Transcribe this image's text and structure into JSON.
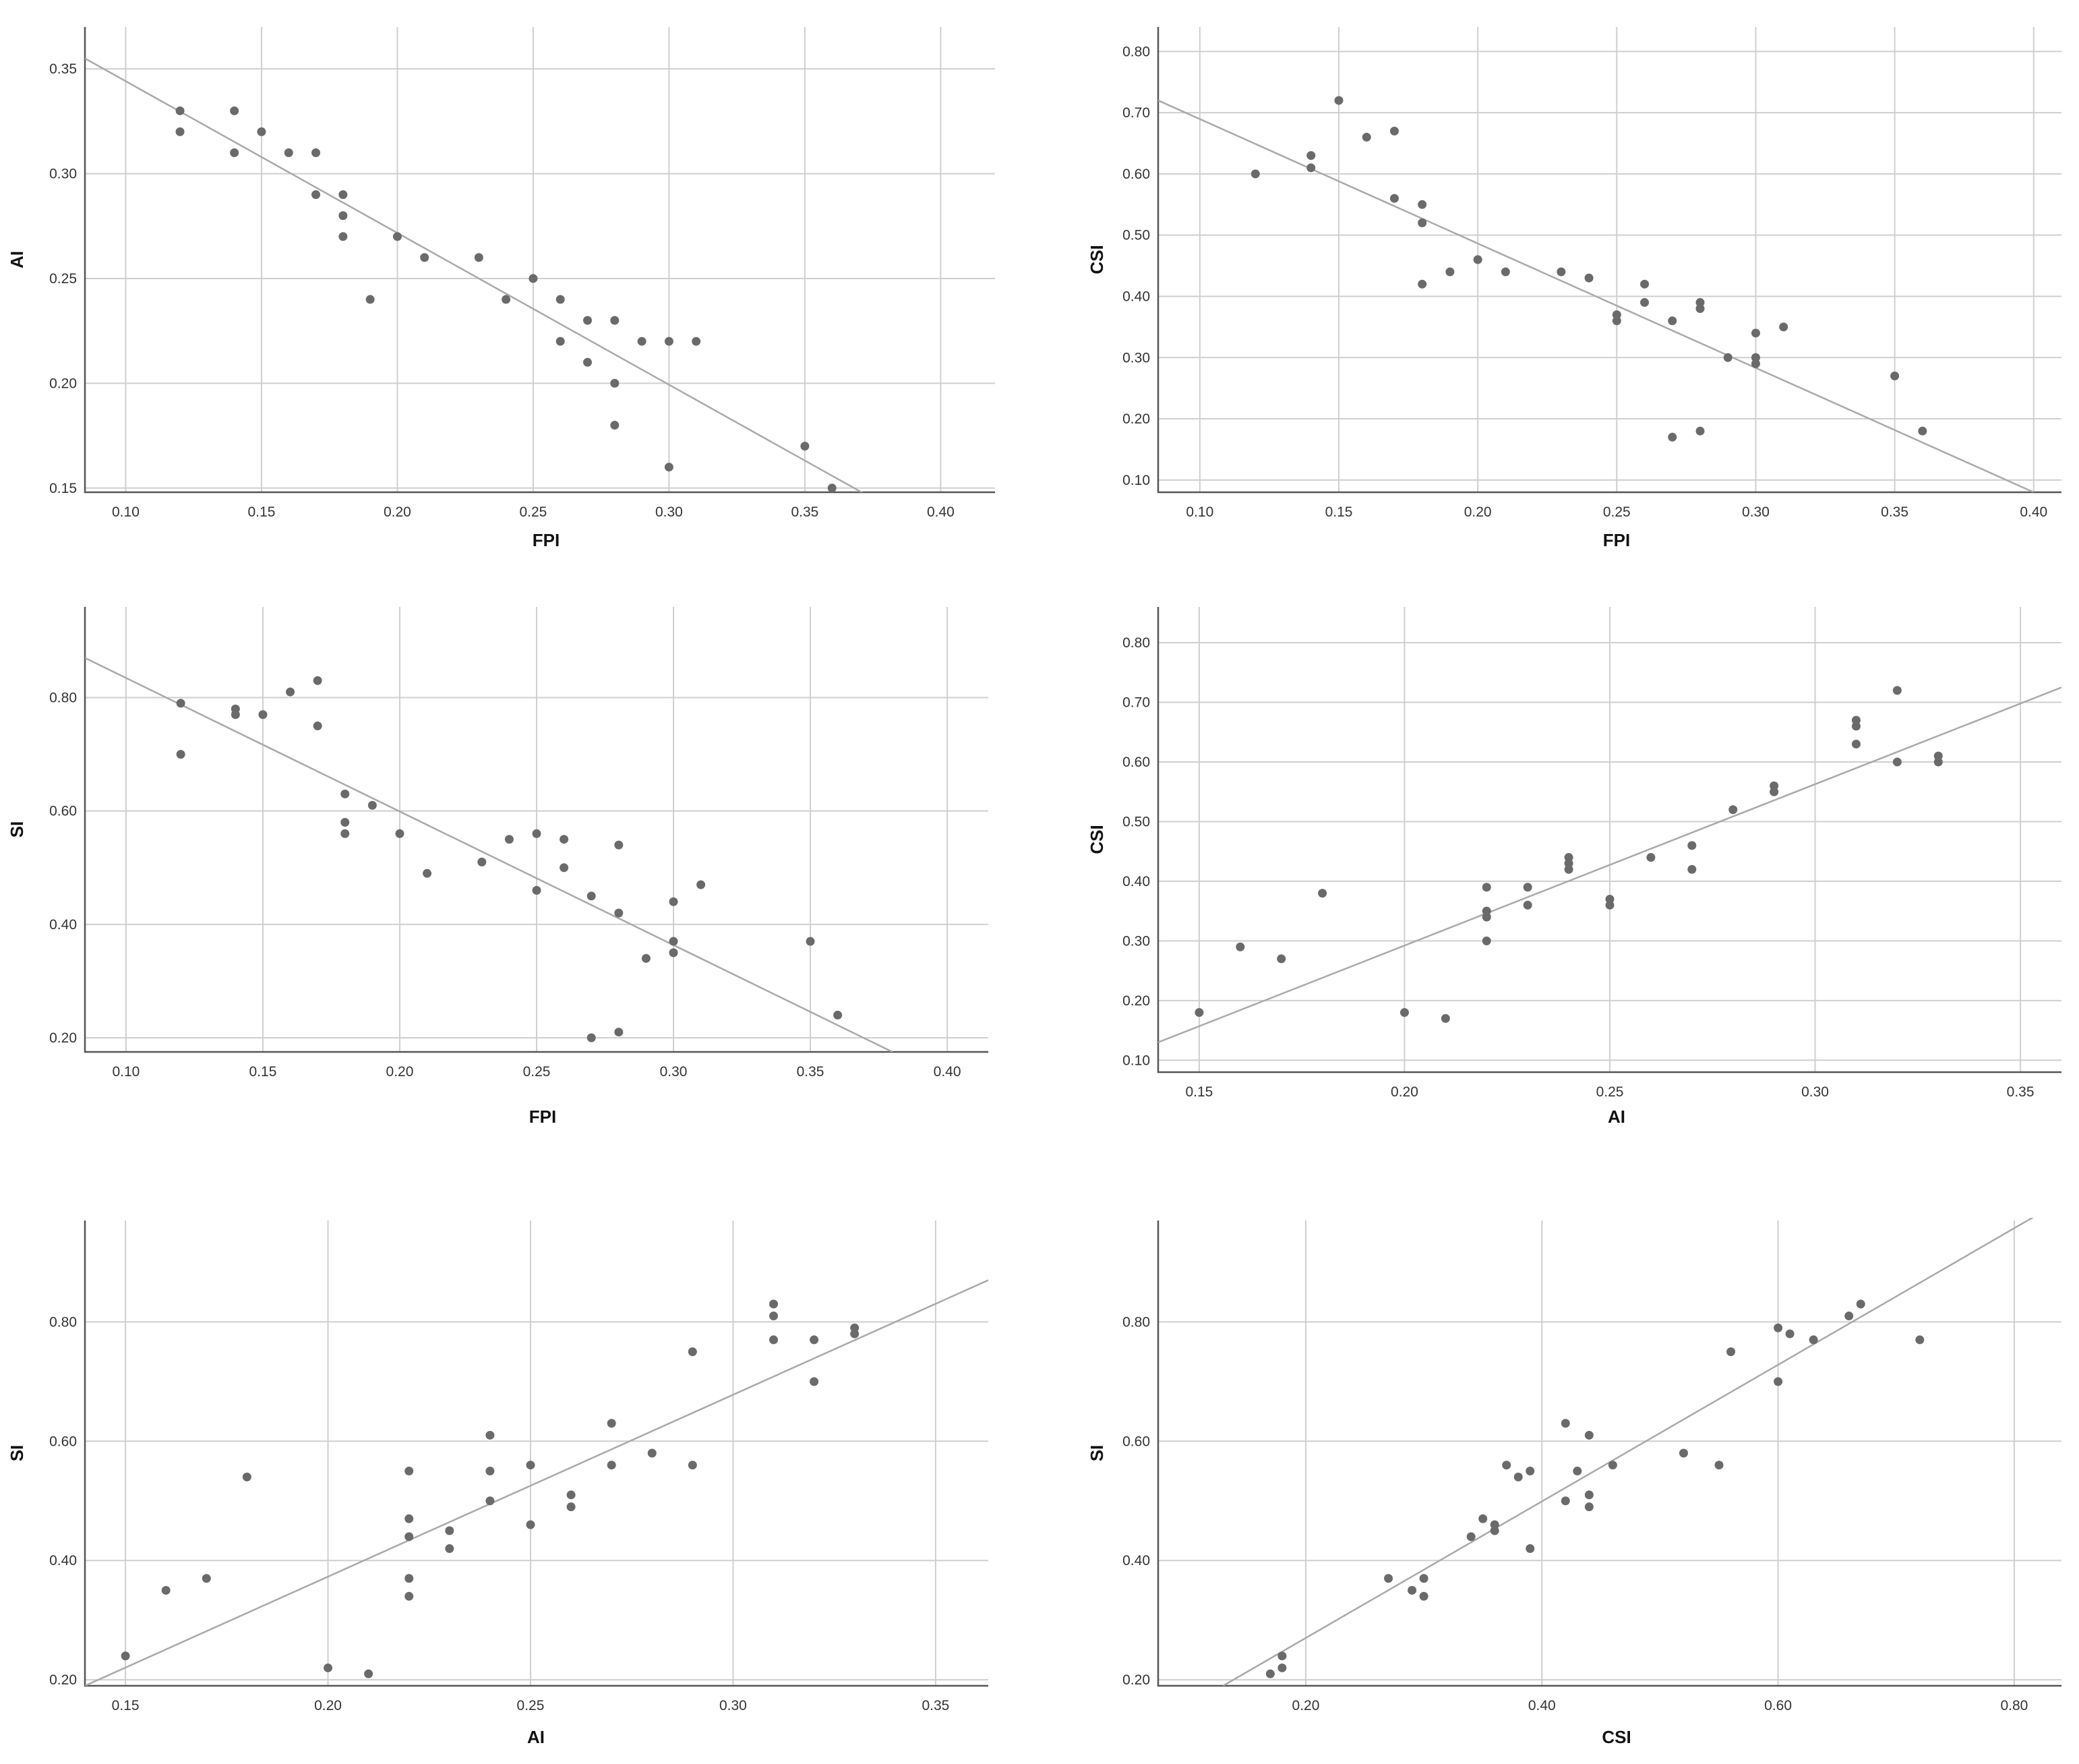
{
  "colors": {
    "points": "#6a6a6a",
    "fit_line": "#a9a9a9",
    "grid": "#cfcfcf",
    "axis": "#555555"
  },
  "chart_data": [
    {
      "id": "fpi-ai",
      "type": "scatter",
      "title": "",
      "xlabel": "FPI",
      "ylabel": "AI",
      "xlim": [
        0.085,
        0.42
      ],
      "ylim": [
        0.148,
        0.37
      ],
      "xticks": [
        0.1,
        0.15,
        0.2,
        0.25,
        0.3,
        0.35,
        0.4
      ],
      "yticks": [
        0.15,
        0.2,
        0.25,
        0.3,
        0.35
      ],
      "x_tick_labels": [
        "0.10",
        "0.15",
        "0.20",
        "0.25",
        "0.30",
        "0.35",
        "0.40"
      ],
      "y_tick_labels": [
        "0.15",
        "0.20",
        "0.25",
        "0.30",
        "0.35"
      ],
      "grid": true,
      "fit_line": {
        "x": [
          0.085,
          0.375
        ],
        "y": [
          0.355,
          0.145
        ]
      },
      "points": [
        [
          0.12,
          0.33
        ],
        [
          0.12,
          0.32
        ],
        [
          0.14,
          0.33
        ],
        [
          0.14,
          0.31
        ],
        [
          0.15,
          0.32
        ],
        [
          0.16,
          0.31
        ],
        [
          0.17,
          0.31
        ],
        [
          0.17,
          0.29
        ],
        [
          0.18,
          0.29
        ],
        [
          0.18,
          0.28
        ],
        [
          0.18,
          0.27
        ],
        [
          0.19,
          0.24
        ],
        [
          0.2,
          0.27
        ],
        [
          0.21,
          0.26
        ],
        [
          0.23,
          0.26
        ],
        [
          0.24,
          0.24
        ],
        [
          0.25,
          0.25
        ],
        [
          0.26,
          0.24
        ],
        [
          0.26,
          0.22
        ],
        [
          0.27,
          0.23
        ],
        [
          0.27,
          0.21
        ],
        [
          0.28,
          0.23
        ],
        [
          0.28,
          0.2
        ],
        [
          0.28,
          0.18
        ],
        [
          0.29,
          0.22
        ],
        [
          0.3,
          0.22
        ],
        [
          0.3,
          0.16
        ],
        [
          0.31,
          0.22
        ],
        [
          0.35,
          0.17
        ],
        [
          0.36,
          0.15
        ]
      ]
    },
    {
      "id": "fpi-csi",
      "type": "scatter",
      "title": "",
      "xlabel": "FPI",
      "ylabel": "CSI",
      "xlim": [
        0.085,
        0.41
      ],
      "ylim": [
        0.08,
        0.84
      ],
      "xticks": [
        0.1,
        0.15,
        0.2,
        0.25,
        0.3,
        0.35,
        0.4
      ],
      "yticks": [
        0.1,
        0.2,
        0.3,
        0.4,
        0.5,
        0.6,
        0.7,
        0.8
      ],
      "x_tick_labels": [
        "0.10",
        "0.15",
        "0.20",
        "0.25",
        "0.30",
        "0.35",
        "0.40"
      ],
      "y_tick_labels": [
        "0.10",
        "0.20",
        "0.30",
        "0.40",
        "0.50",
        "0.60",
        "0.70",
        "0.80"
      ],
      "grid": true,
      "fit_line": {
        "x": [
          0.085,
          0.4
        ],
        "y": [
          0.72,
          0.08
        ]
      },
      "points": [
        [
          0.12,
          0.6
        ],
        [
          0.14,
          0.63
        ],
        [
          0.14,
          0.61
        ],
        [
          0.15,
          0.72
        ],
        [
          0.16,
          0.66
        ],
        [
          0.17,
          0.67
        ],
        [
          0.17,
          0.56
        ],
        [
          0.18,
          0.55
        ],
        [
          0.18,
          0.52
        ],
        [
          0.18,
          0.42
        ],
        [
          0.19,
          0.44
        ],
        [
          0.2,
          0.46
        ],
        [
          0.21,
          0.44
        ],
        [
          0.23,
          0.44
        ],
        [
          0.24,
          0.43
        ],
        [
          0.25,
          0.37
        ],
        [
          0.25,
          0.36
        ],
        [
          0.26,
          0.42
        ],
        [
          0.26,
          0.39
        ],
        [
          0.27,
          0.36
        ],
        [
          0.27,
          0.17
        ],
        [
          0.28,
          0.39
        ],
        [
          0.28,
          0.38
        ],
        [
          0.28,
          0.18
        ],
        [
          0.29,
          0.3
        ],
        [
          0.3,
          0.34
        ],
        [
          0.3,
          0.3
        ],
        [
          0.3,
          0.29
        ],
        [
          0.31,
          0.35
        ],
        [
          0.35,
          0.27
        ],
        [
          0.36,
          0.18
        ]
      ]
    },
    {
      "id": "fpi-si",
      "type": "scatter",
      "title": "",
      "xlabel": "FPI",
      "ylabel": "SI",
      "xlim": [
        0.085,
        0.415
      ],
      "ylim": [
        0.175,
        0.96
      ],
      "xticks": [
        0.1,
        0.15,
        0.2,
        0.25,
        0.3,
        0.35,
        0.4
      ],
      "yticks": [
        0.2,
        0.4,
        0.6,
        0.8
      ],
      "x_tick_labels": [
        "0.10",
        "0.15",
        "0.20",
        "0.25",
        "0.30",
        "0.35",
        "0.40"
      ],
      "y_tick_labels": [
        "0.20",
        "0.40",
        "0.60",
        "0.80"
      ],
      "grid": true,
      "fit_line": {
        "x": [
          0.085,
          0.38
        ],
        "y": [
          0.87,
          0.175
        ]
      },
      "points": [
        [
          0.12,
          0.79
        ],
        [
          0.12,
          0.7
        ],
        [
          0.14,
          0.78
        ],
        [
          0.14,
          0.77
        ],
        [
          0.15,
          0.77
        ],
        [
          0.16,
          0.81
        ],
        [
          0.17,
          0.83
        ],
        [
          0.17,
          0.75
        ],
        [
          0.18,
          0.63
        ],
        [
          0.18,
          0.58
        ],
        [
          0.18,
          0.56
        ],
        [
          0.19,
          0.61
        ],
        [
          0.2,
          0.56
        ],
        [
          0.21,
          0.49
        ],
        [
          0.23,
          0.51
        ],
        [
          0.24,
          0.55
        ],
        [
          0.25,
          0.56
        ],
        [
          0.25,
          0.46
        ],
        [
          0.26,
          0.55
        ],
        [
          0.26,
          0.5
        ],
        [
          0.27,
          0.45
        ],
        [
          0.27,
          0.2
        ],
        [
          0.28,
          0.54
        ],
        [
          0.28,
          0.42
        ],
        [
          0.28,
          0.21
        ],
        [
          0.29,
          0.34
        ],
        [
          0.3,
          0.44
        ],
        [
          0.3,
          0.37
        ],
        [
          0.3,
          0.35
        ],
        [
          0.31,
          0.47
        ],
        [
          0.35,
          0.37
        ],
        [
          0.36,
          0.24
        ]
      ]
    },
    {
      "id": "ai-csi",
      "type": "scatter",
      "title": "",
      "xlabel": "AI",
      "ylabel": "CSI",
      "xlim": [
        0.14,
        0.36
      ],
      "ylim": [
        0.08,
        0.86
      ],
      "xticks": [
        0.15,
        0.2,
        0.25,
        0.3,
        0.35
      ],
      "yticks": [
        0.1,
        0.2,
        0.3,
        0.4,
        0.5,
        0.6,
        0.7,
        0.8
      ],
      "x_tick_labels": [
        "0.15",
        "0.20",
        "0.25",
        "0.30",
        "0.35"
      ],
      "y_tick_labels": [
        "0.10",
        "0.20",
        "0.30",
        "0.40",
        "0.50",
        "0.60",
        "0.70",
        "0.80"
      ],
      "grid": true,
      "fit_line": {
        "x": [
          0.14,
          0.36
        ],
        "y": [
          0.13,
          0.725
        ]
      },
      "points": [
        [
          0.15,
          0.18
        ],
        [
          0.16,
          0.29
        ],
        [
          0.17,
          0.27
        ],
        [
          0.18,
          0.38
        ],
        [
          0.2,
          0.18
        ],
        [
          0.21,
          0.17
        ],
        [
          0.22,
          0.39
        ],
        [
          0.22,
          0.35
        ],
        [
          0.22,
          0.34
        ],
        [
          0.22,
          0.3
        ],
        [
          0.23,
          0.39
        ],
        [
          0.23,
          0.36
        ],
        [
          0.24,
          0.44
        ],
        [
          0.24,
          0.43
        ],
        [
          0.24,
          0.42
        ],
        [
          0.25,
          0.37
        ],
        [
          0.25,
          0.36
        ],
        [
          0.26,
          0.44
        ],
        [
          0.27,
          0.46
        ],
        [
          0.27,
          0.42
        ],
        [
          0.28,
          0.52
        ],
        [
          0.29,
          0.56
        ],
        [
          0.29,
          0.55
        ],
        [
          0.31,
          0.67
        ],
        [
          0.31,
          0.66
        ],
        [
          0.31,
          0.63
        ],
        [
          0.32,
          0.72
        ],
        [
          0.32,
          0.6
        ],
        [
          0.33,
          0.61
        ],
        [
          0.33,
          0.6
        ]
      ]
    },
    {
      "id": "ai-si",
      "type": "scatter",
      "title": "",
      "xlabel": "AI",
      "ylabel": "SI",
      "xlim": [
        0.14,
        0.363
      ],
      "ylim": [
        0.19,
        0.97
      ],
      "xticks": [
        0.15,
        0.2,
        0.25,
        0.3,
        0.35
      ],
      "yticks": [
        0.2,
        0.4,
        0.6,
        0.8
      ],
      "x_tick_labels": [
        "0.15",
        "0.20",
        "0.25",
        "0.30",
        "0.35"
      ],
      "y_tick_labels": [
        "0.20",
        "0.40",
        "0.60",
        "0.80"
      ],
      "grid": true,
      "fit_line": {
        "x": [
          0.14,
          0.363
        ],
        "y": [
          0.19,
          0.87
        ]
      },
      "points": [
        [
          0.15,
          0.24
        ],
        [
          0.16,
          0.35
        ],
        [
          0.17,
          0.37
        ],
        [
          0.18,
          0.54
        ],
        [
          0.2,
          0.22
        ],
        [
          0.21,
          0.21
        ],
        [
          0.22,
          0.55
        ],
        [
          0.22,
          0.47
        ],
        [
          0.22,
          0.44
        ],
        [
          0.22,
          0.37
        ],
        [
          0.22,
          0.34
        ],
        [
          0.23,
          0.45
        ],
        [
          0.23,
          0.42
        ],
        [
          0.24,
          0.61
        ],
        [
          0.24,
          0.55
        ],
        [
          0.24,
          0.5
        ],
        [
          0.25,
          0.56
        ],
        [
          0.25,
          0.46
        ],
        [
          0.26,
          0.51
        ],
        [
          0.26,
          0.49
        ],
        [
          0.27,
          0.63
        ],
        [
          0.27,
          0.56
        ],
        [
          0.28,
          0.58
        ],
        [
          0.29,
          0.75
        ],
        [
          0.29,
          0.56
        ],
        [
          0.31,
          0.83
        ],
        [
          0.31,
          0.81
        ],
        [
          0.31,
          0.77
        ],
        [
          0.32,
          0.77
        ],
        [
          0.32,
          0.7
        ],
        [
          0.33,
          0.79
        ],
        [
          0.33,
          0.78
        ]
      ]
    },
    {
      "id": "csi-si",
      "type": "scatter",
      "title": "",
      "xlabel": "CSI",
      "ylabel": "SI",
      "xlim": [
        0.075,
        0.84
      ],
      "ylim": [
        0.19,
        0.97
      ],
      "xticks": [
        0.2,
        0.4,
        0.6,
        0.8
      ],
      "yticks": [
        0.2,
        0.4,
        0.6,
        0.8
      ],
      "x_tick_labels": [
        "0.20",
        "0.40",
        "0.60",
        "0.80"
      ],
      "y_tick_labels": [
        "0.20",
        "0.40",
        "0.60",
        "0.80"
      ],
      "grid": true,
      "fit_line": {
        "x": [
          0.13,
          0.82
        ],
        "y": [
          0.19,
          0.98
        ]
      },
      "points": [
        [
          0.17,
          0.21
        ],
        [
          0.18,
          0.24
        ],
        [
          0.18,
          0.22
        ],
        [
          0.27,
          0.37
        ],
        [
          0.29,
          0.35
        ],
        [
          0.3,
          0.37
        ],
        [
          0.3,
          0.34
        ],
        [
          0.34,
          0.44
        ],
        [
          0.35,
          0.47
        ],
        [
          0.36,
          0.46
        ],
        [
          0.36,
          0.45
        ],
        [
          0.37,
          0.56
        ],
        [
          0.38,
          0.54
        ],
        [
          0.39,
          0.55
        ],
        [
          0.39,
          0.42
        ],
        [
          0.42,
          0.63
        ],
        [
          0.42,
          0.5
        ],
        [
          0.43,
          0.55
        ],
        [
          0.44,
          0.61
        ],
        [
          0.44,
          0.51
        ],
        [
          0.44,
          0.49
        ],
        [
          0.46,
          0.56
        ],
        [
          0.52,
          0.58
        ],
        [
          0.55,
          0.56
        ],
        [
          0.56,
          0.75
        ],
        [
          0.6,
          0.79
        ],
        [
          0.6,
          0.7
        ],
        [
          0.61,
          0.78
        ],
        [
          0.63,
          0.77
        ],
        [
          0.66,
          0.81
        ],
        [
          0.67,
          0.83
        ],
        [
          0.72,
          0.77
        ]
      ]
    }
  ]
}
